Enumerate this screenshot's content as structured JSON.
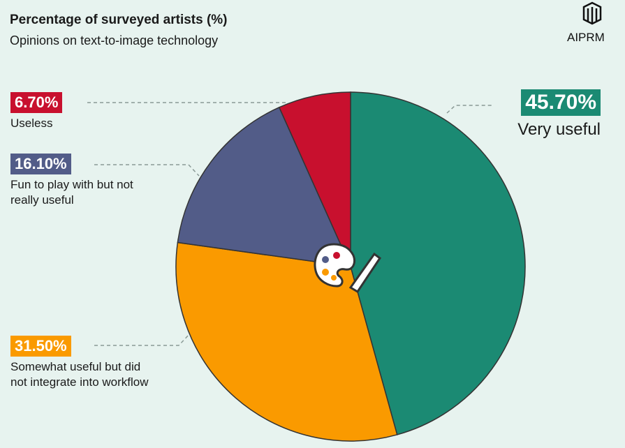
{
  "chart_data": {
    "type": "pie",
    "title": "Percentage of surveyed artists (%)",
    "subtitle": "Opinions on text-to-image technology",
    "brand": "AIPRM",
    "categories": [
      "Very useful",
      "Somewhat useful but did not integrate into workflow",
      "Fun to play with but not really useful",
      "Useless"
    ],
    "values": [
      45.7,
      31.5,
      16.1,
      6.7
    ],
    "value_labels": [
      "45.70%",
      "31.50%",
      "16.10%",
      "6.70%"
    ],
    "colors": [
      "#1b8a73",
      "#fa9a00",
      "#525c88",
      "#c8102e"
    ]
  }
}
